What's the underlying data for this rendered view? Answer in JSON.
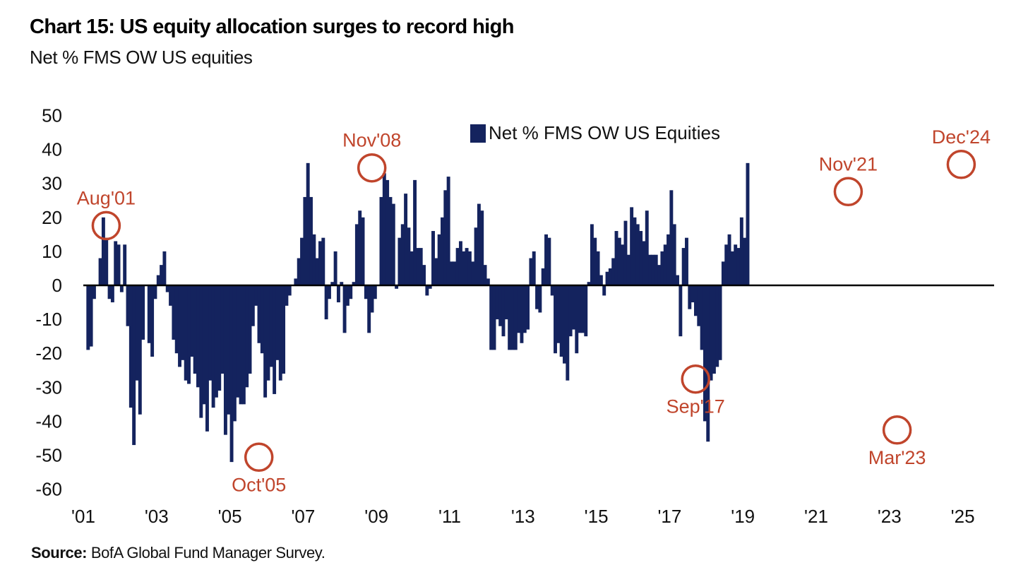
{
  "title": "Chart 15: US equity allocation surges to record high",
  "subtitle": "Net % FMS OW US equities",
  "source_label": "Source:",
  "source_text": "BofA Global Fund Manager Survey.",
  "colors": {
    "bar": "#14235e",
    "annotation": "#c0452c",
    "axis": "#000000"
  },
  "chart_data": {
    "type": "bar",
    "ylim": [
      -60,
      50
    ],
    "yticks": [
      50,
      40,
      30,
      20,
      10,
      0,
      -10,
      -20,
      -30,
      -40,
      -50,
      -60
    ],
    "xtick_labels": [
      "'01",
      "'03",
      "'05",
      "'07",
      "'09",
      "'11",
      "'13",
      "'15",
      "'17",
      "'19",
      "'21",
      "'23",
      "'25"
    ],
    "xtick_years": [
      2001,
      2003,
      2005,
      2007,
      2009,
      2011,
      2013,
      2015,
      2017,
      2019,
      2021,
      2023,
      2025
    ],
    "legend_position": "top-center",
    "grid": false,
    "series": [
      {
        "name": "Net % FMS OW US Equities",
        "start": "2001-02",
        "frequency": "monthly",
        "values": [
          -19,
          -18,
          -4,
          0,
          8,
          20,
          14,
          -4,
          -5,
          13,
          12,
          -2,
          12,
          -12,
          -36,
          -47,
          -28,
          -38,
          -16,
          0,
          -17,
          -21,
          -4,
          3,
          6,
          10,
          -2,
          -6,
          -16,
          -20,
          -24,
          -22,
          -28,
          -29,
          -21,
          -26,
          -30,
          -39,
          -35,
          -43,
          -28,
          -36,
          -33,
          -31,
          -26,
          -44,
          -38,
          -52,
          -40,
          -33,
          -35,
          -35,
          -30,
          -26,
          -12,
          -6,
          -17,
          -20,
          -33,
          -28,
          -24,
          -32,
          -22,
          -28,
          -26,
          -6,
          -3,
          0,
          2,
          8,
          14,
          26,
          36,
          26,
          15,
          8,
          13,
          14,
          -10,
          -4,
          1,
          10,
          -5,
          1,
          -14,
          -6,
          -4,
          1,
          18,
          22,
          20,
          -4,
          -14,
          -8,
          -4,
          0,
          26,
          33,
          31,
          26,
          24,
          -1,
          14,
          18,
          27,
          17,
          10,
          31,
          11,
          11,
          6,
          -3,
          -1,
          16,
          8,
          15,
          20,
          28,
          32,
          7,
          7,
          11,
          13,
          10,
          11,
          10,
          7,
          17,
          24,
          22,
          6,
          2,
          -19,
          -19,
          -10,
          -12,
          -15,
          -10,
          -19,
          -19,
          -19,
          -14,
          -17,
          -14,
          -13,
          8,
          10,
          -7,
          -8,
          5,
          15,
          14,
          -3,
          -20,
          -17,
          -21,
          -23,
          -28,
          -15,
          -13,
          -20,
          -14,
          -14,
          -15,
          1,
          18,
          14,
          10,
          3,
          -3,
          4,
          5,
          8,
          16,
          14,
          12,
          19,
          9,
          23,
          20,
          18,
          16,
          13,
          22,
          9,
          9,
          9,
          6,
          10,
          12,
          15,
          28,
          18,
          3,
          -15,
          11,
          14,
          -7,
          -5,
          -9,
          -12,
          -19,
          -40,
          -46,
          -28,
          -26,
          -24,
          -22,
          7,
          12,
          15,
          10,
          12,
          11,
          20,
          14,
          36
        ]
      }
    ],
    "annotations": [
      {
        "label": "Aug'01",
        "date": "2001-08",
        "value": 18
      },
      {
        "label": "Oct'05",
        "date": "2005-10",
        "value": -51
      },
      {
        "label": "Nov'08",
        "date": "2008-11",
        "value": 35
      },
      {
        "label": "Sep'17",
        "date": "2017-09",
        "value": -28
      },
      {
        "label": "Nov'21",
        "date": "2021-11",
        "value": 28
      },
      {
        "label": "Mar'23",
        "date": "2023-03",
        "value": -43
      },
      {
        "label": "Dec'24",
        "date": "2024-12",
        "value": 36
      }
    ]
  }
}
